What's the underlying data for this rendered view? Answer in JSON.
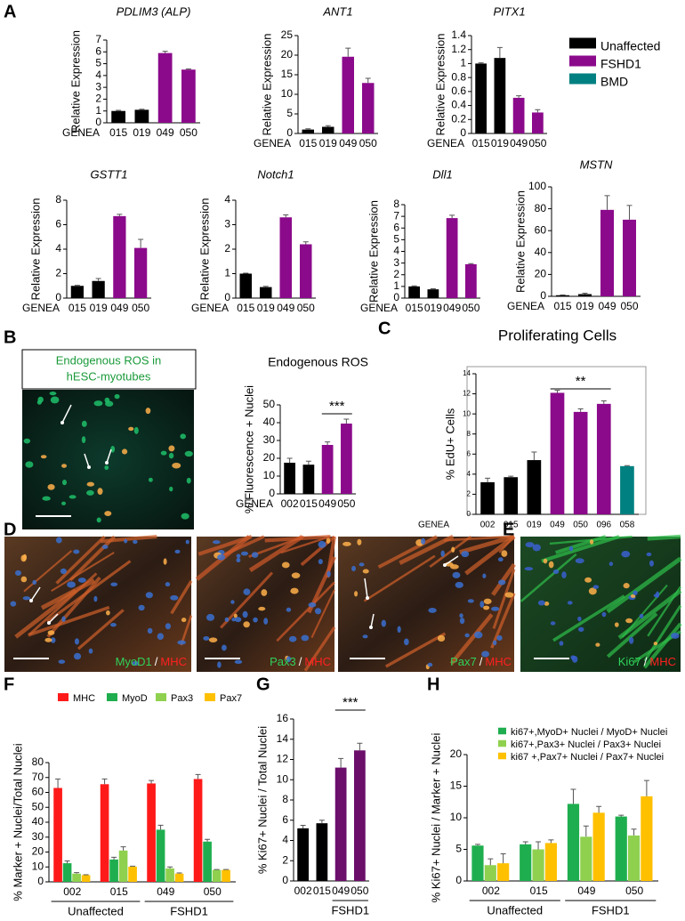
{
  "panels": [
    "A",
    "B",
    "C",
    "D",
    "E",
    "F",
    "G",
    "H"
  ],
  "images": {
    "b_caption": [
      "Endogenous ROS in",
      "hESC-myotubes"
    ],
    "d": [
      {
        "marker": "MyoD1",
        "sep": "/",
        "stain": "MHC"
      },
      {
        "marker": "Pax3",
        "sep": "/",
        "stain": "MHC"
      },
      {
        "marker": "Pax7",
        "sep": "/",
        "stain": "MHC"
      }
    ],
    "e": {
      "marker": "Ki67",
      "sep": "/",
      "stain": "MHC"
    }
  },
  "chart_data": [
    {
      "type": "bar",
      "title": "PDLIM3 (ALP)",
      "y_label": "Relative Expression",
      "x_prefix": "GENEA",
      "categories": [
        "015",
        "019",
        "049",
        "050"
      ],
      "values": [
        1,
        1.1,
        5.9,
        4.5
      ],
      "errors": [
        0.05,
        0.05,
        0.15,
        0.05
      ],
      "colors": [
        "#000000",
        "#000000",
        "#8b0a8b",
        "#8b0a8b"
      ],
      "ylim": [
        0,
        7
      ],
      "yticks": [
        0,
        1,
        2,
        3,
        4,
        5,
        6,
        7
      ]
    },
    {
      "type": "bar",
      "title": "ANT1",
      "y_label": "Relative Expression",
      "x_prefix": "GENEA",
      "categories": [
        "015",
        "019",
        "049",
        "050"
      ],
      "values": [
        1,
        1.7,
        19.6,
        12.9
      ],
      "errors": [
        0.2,
        0.3,
        2.2,
        1.2
      ],
      "colors": [
        "#000000",
        "#000000",
        "#8b0a8b",
        "#8b0a8b"
      ],
      "ylim": [
        0,
        25
      ],
      "yticks": [
        0,
        5,
        10,
        15,
        20,
        25
      ]
    },
    {
      "type": "bar",
      "title": "PITX1",
      "y_label": "Relative Expression",
      "x_prefix": "GENEA",
      "categories": [
        "015",
        "019",
        "049",
        "050"
      ],
      "values": [
        1,
        1.08,
        0.51,
        0.3
      ],
      "errors": [
        0.01,
        0.15,
        0.03,
        0.04
      ],
      "colors": [
        "#000000",
        "#000000",
        "#8b0a8b",
        "#8b0a8b"
      ],
      "ylim": [
        0,
        1.4
      ],
      "yticks": [
        0,
        0.2,
        0.4,
        0.6,
        0.8,
        1,
        1.2,
        1.4
      ]
    },
    {
      "type": "bar",
      "title": "GSTT1",
      "y_label": "Relative Expression",
      "x_prefix": "GENEA",
      "categories": [
        "015",
        "019",
        "049",
        "050"
      ],
      "values": [
        1,
        1.4,
        6.7,
        4.1
      ],
      "errors": [
        0.05,
        0.2,
        0.15,
        0.7
      ],
      "colors": [
        "#000000",
        "#000000",
        "#8b0a8b",
        "#8b0a8b"
      ],
      "ylim": [
        0,
        8
      ],
      "yticks": [
        0,
        2,
        4,
        6,
        8
      ]
    },
    {
      "type": "bar",
      "title": "Notch1",
      "y_label": "Relative Expression",
      "x_prefix": "GENEA",
      "categories": [
        "015",
        "019",
        "049",
        "050"
      ],
      "values": [
        1,
        0.45,
        3.3,
        2.2
      ],
      "errors": [
        0.02,
        0.03,
        0.1,
        0.1
      ],
      "colors": [
        "#000000",
        "#000000",
        "#8b0a8b",
        "#8b0a8b"
      ],
      "ylim": [
        0,
        4
      ],
      "yticks": [
        0,
        1,
        2,
        3,
        4
      ]
    },
    {
      "type": "bar",
      "title": "Dll1",
      "y_label": "Relative Expression",
      "x_prefix": "GENEA",
      "categories": [
        "015",
        "019",
        "049",
        "050"
      ],
      "values": [
        1,
        0.75,
        6.85,
        2.9
      ],
      "errors": [
        0.05,
        0.05,
        0.25,
        0.05
      ],
      "colors": [
        "#000000",
        "#000000",
        "#8b0a8b",
        "#8b0a8b"
      ],
      "ylim": [
        0,
        8
      ],
      "yticks": [
        0,
        1,
        2,
        3,
        4,
        5,
        6,
        7,
        8
      ]
    },
    {
      "type": "bar",
      "title": "MSTN",
      "y_label": "Relative Expression",
      "x_prefix": "GENEA",
      "categories": [
        "015",
        "019",
        "049",
        "050"
      ],
      "values": [
        1,
        2,
        79,
        70
      ],
      "errors": [
        0.3,
        0.8,
        13,
        13
      ],
      "colors": [
        "#000000",
        "#000000",
        "#8b0a8b",
        "#8b0a8b"
      ],
      "ylim": [
        0,
        100
      ],
      "yticks": [
        0,
        20,
        40,
        60,
        80,
        100
      ]
    },
    {
      "type": "legend",
      "series": [
        {
          "name": "Unaffected",
          "color": "#000000"
        },
        {
          "name": "FSHD1",
          "color": "#8b0a8b"
        },
        {
          "name": "BMD",
          "color": "#008080"
        }
      ]
    },
    {
      "type": "bar",
      "title": "Endogenous ROS",
      "y_label": "% Fluorescence + Nuclei",
      "x_prefix": "GENEA",
      "categories": [
        "002",
        "015",
        "049",
        "050"
      ],
      "values": [
        17.5,
        16.4,
        27.5,
        39.5
      ],
      "errors": [
        2.5,
        2,
        1.7,
        2.5
      ],
      "colors": [
        "#000000",
        "#000000",
        "#8b0a8b",
        "#8b0a8b"
      ],
      "ylim": [
        0,
        50
      ],
      "yticks": [
        0,
        10,
        20,
        30,
        40,
        50
      ],
      "annotation": "***"
    },
    {
      "type": "bar",
      "title": "Proliferating Cells",
      "y_label": "% EdU+ Cells",
      "x_prefix": "GENEA",
      "categories": [
        "002",
        "015",
        "019",
        "049",
        "050",
        "096",
        "058"
      ],
      "values": [
        3.2,
        3.7,
        5.4,
        12.1,
        10.2,
        11.0,
        4.8
      ],
      "errors": [
        0.4,
        0.1,
        0.8,
        0.25,
        0.3,
        0.3,
        0.05
      ],
      "colors": [
        "#000000",
        "#000000",
        "#000000",
        "#8b0a8b",
        "#8b0a8b",
        "#8b0a8b",
        "#008080"
      ],
      "ylim": [
        0,
        14
      ],
      "yticks": [
        0,
        2,
        4,
        6,
        8,
        10,
        12,
        14
      ],
      "annotation": "**"
    },
    {
      "type": "bar",
      "y_label": "% Marker + Nuclei/Total Nuclei",
      "categories": [
        "002",
        "015",
        "049",
        "050"
      ],
      "groups": [
        "Unaffected",
        "FSHD1"
      ],
      "ylim": [
        0,
        80
      ],
      "yticks": [
        0,
        10,
        20,
        30,
        40,
        50,
        60,
        70,
        80
      ],
      "series": [
        {
          "name": "MHC",
          "color": "#ff1a1a",
          "values": [
            63,
            65.5,
            66,
            69
          ],
          "errors": [
            6,
            3.5,
            2,
            3
          ]
        },
        {
          "name": "MyoD",
          "color": "#1fae4f",
          "values": [
            12.5,
            15,
            35,
            27
          ],
          "errors": [
            1.5,
            1.5,
            3,
            1.5
          ]
        },
        {
          "name": "Pax3",
          "color": "#8fd14f",
          "values": [
            5.5,
            21,
            9,
            8
          ],
          "errors": [
            0.7,
            2.5,
            1,
            0.3
          ]
        },
        {
          "name": "Pax7",
          "color": "#ffc000",
          "values": [
            4.5,
            10.2,
            5.5,
            8
          ],
          "errors": [
            0.3,
            0.3,
            0.5,
            0.3
          ]
        }
      ]
    },
    {
      "type": "bar",
      "y_label": "% Ki67+ Nuclei / Total Nuclei",
      "categories": [
        "002",
        "015",
        "049",
        "050"
      ],
      "groups": [
        "FSHD1"
      ],
      "values": [
        5.2,
        5.7,
        11.2,
        12.9
      ],
      "errors": [
        0.3,
        0.3,
        0.9,
        0.7
      ],
      "colors": [
        "#000000",
        "#000000",
        "#6b0f6b",
        "#6b0f6b"
      ],
      "ylim": [
        0,
        16
      ],
      "yticks": [
        0,
        2,
        4,
        6,
        8,
        10,
        12,
        14,
        16
      ],
      "annotation": "***"
    },
    {
      "type": "bar",
      "y_label": "% Ki67+ Nuclei / Marker + Nuclei",
      "categories": [
        "002",
        "015",
        "049",
        "050"
      ],
      "groups": [
        "Unaffected",
        "FSHD1"
      ],
      "ylim": [
        0,
        20
      ],
      "yticks": [
        0,
        5,
        10,
        15,
        20
      ],
      "series": [
        {
          "name": "ki67+,MyoD+ Nuclei / MyoD+ Nuclei",
          "color": "#1fae4f",
          "values": [
            5.6,
            5.8,
            12.2,
            10.2
          ],
          "errors": [
            0.2,
            0.4,
            2.3,
            0.2
          ]
        },
        {
          "name": "ki67+,Pax3+ Nuclei / Pax3+ Nuclei",
          "color": "#8fd14f",
          "values": [
            2.5,
            5,
            7,
            7.2
          ],
          "errors": [
            1,
            1.2,
            1.7,
            1
          ]
        },
        {
          "name": "ki67 +,Pax7+ Nuclei / Pax7+ Nuclei",
          "color": "#ffc000",
          "values": [
            2.8,
            6,
            10.8,
            13.4
          ],
          "errors": [
            1.5,
            0.5,
            1,
            2.5
          ]
        }
      ]
    }
  ]
}
